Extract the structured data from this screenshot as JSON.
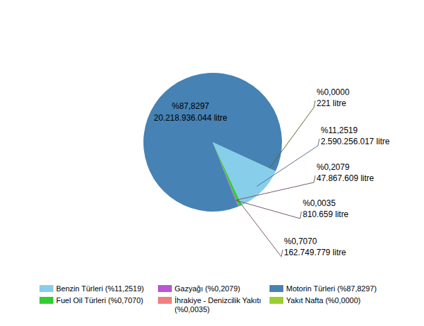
{
  "chart_data": {
    "type": "pie",
    "categories": [
      "Benzin Türleri (%11,2519)",
      "Fuel Oil Türleri (%0,7070)",
      "Gazyağı (%0,2079)",
      "İhrakiye - Denizcilik Yakıtı (%0,0035)",
      "Motorin Türleri (%87,8297)",
      "Yakıt Nafta (%0,0000)"
    ],
    "values": [
      11.2519,
      0.707,
      0.2079,
      0.0035,
      87.8297,
      0.0
    ],
    "value_labels": [
      "%11,2519",
      "%0,7070",
      "%0,2079",
      "%0,0035",
      "%87,8297",
      "%0,0000"
    ],
    "litres": [
      2590256017,
      162749779,
      47867609,
      810659,
      20218936044,
      221
    ],
    "litre_labels": [
      "2.590.256.017 litre",
      "162.749.779 litre",
      "47.867.609 litre",
      "810.659 litre",
      "20.218.936.044 litre",
      "221 litre"
    ],
    "colors": [
      "#87CEEB",
      "#32CD32",
      "#BA55D3",
      "#F08080",
      "#4682B4",
      "#9ACD32"
    ],
    "data_labels": true,
    "legend": "bottom"
  }
}
